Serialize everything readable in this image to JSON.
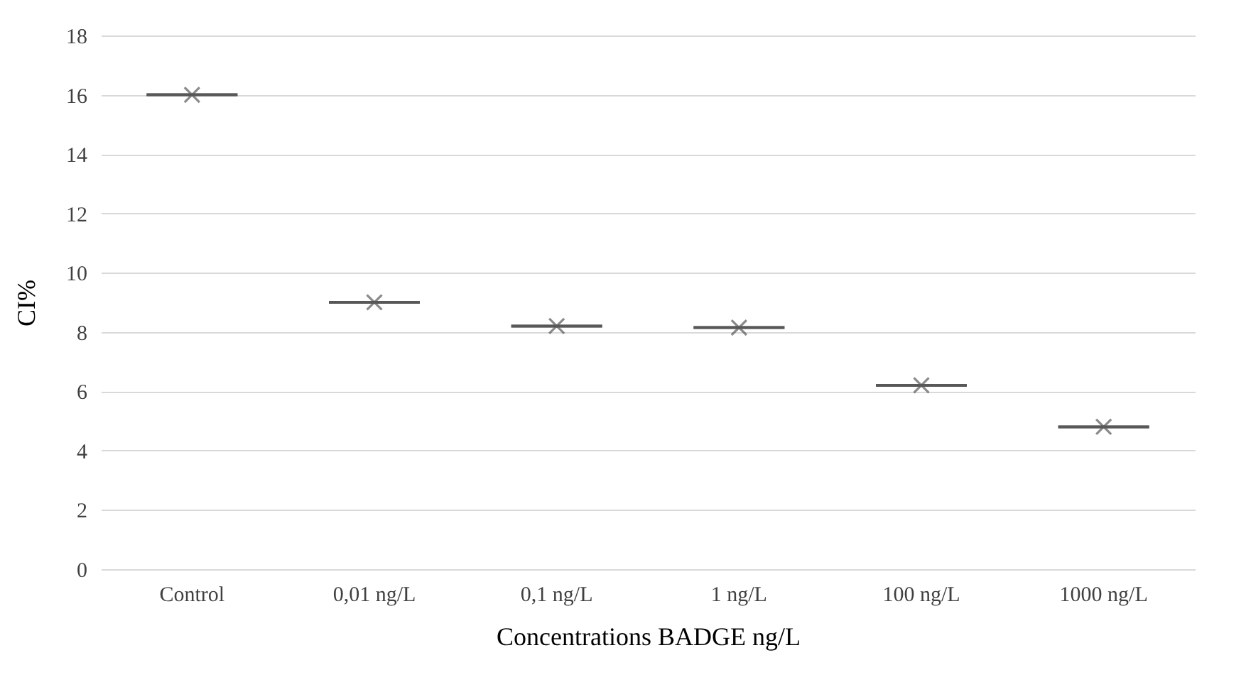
{
  "chart_data": {
    "type": "box",
    "xlabel": "Concentrations BADGE ng/L",
    "ylabel": "CI%",
    "categories": [
      "Control",
      "0,01 ng/L",
      "0,1 ng/L",
      "1 ng/L",
      "100 ng/L",
      "1000 ng/L"
    ],
    "boxes": [
      {
        "low": 16.0,
        "q1": 16.0,
        "median": 16.0,
        "q3": 16.0,
        "high": 16.0,
        "mean": 16.0
      },
      {
        "low": 9.0,
        "q1": 9.0,
        "median": 9.0,
        "q3": 9.0,
        "high": 9.0,
        "mean": 9.0
      },
      {
        "low": 8.2,
        "q1": 8.2,
        "median": 8.2,
        "q3": 8.2,
        "high": 8.2,
        "mean": 8.2
      },
      {
        "low": 8.15,
        "q1": 8.15,
        "median": 8.15,
        "q3": 8.15,
        "high": 8.15,
        "mean": 8.15
      },
      {
        "low": 6.2,
        "q1": 6.2,
        "median": 6.2,
        "q3": 6.2,
        "high": 6.2,
        "mean": 6.2
      },
      {
        "low": 4.8,
        "q1": 4.8,
        "median": 4.8,
        "q3": 4.8,
        "high": 4.8,
        "mean": 4.8
      }
    ],
    "color": "#595959",
    "ylim": [
      0,
      18
    ],
    "yticks": [
      0,
      2,
      4,
      6,
      8,
      10,
      12,
      14,
      16,
      18
    ],
    "grid": "y",
    "marker": "cross"
  }
}
